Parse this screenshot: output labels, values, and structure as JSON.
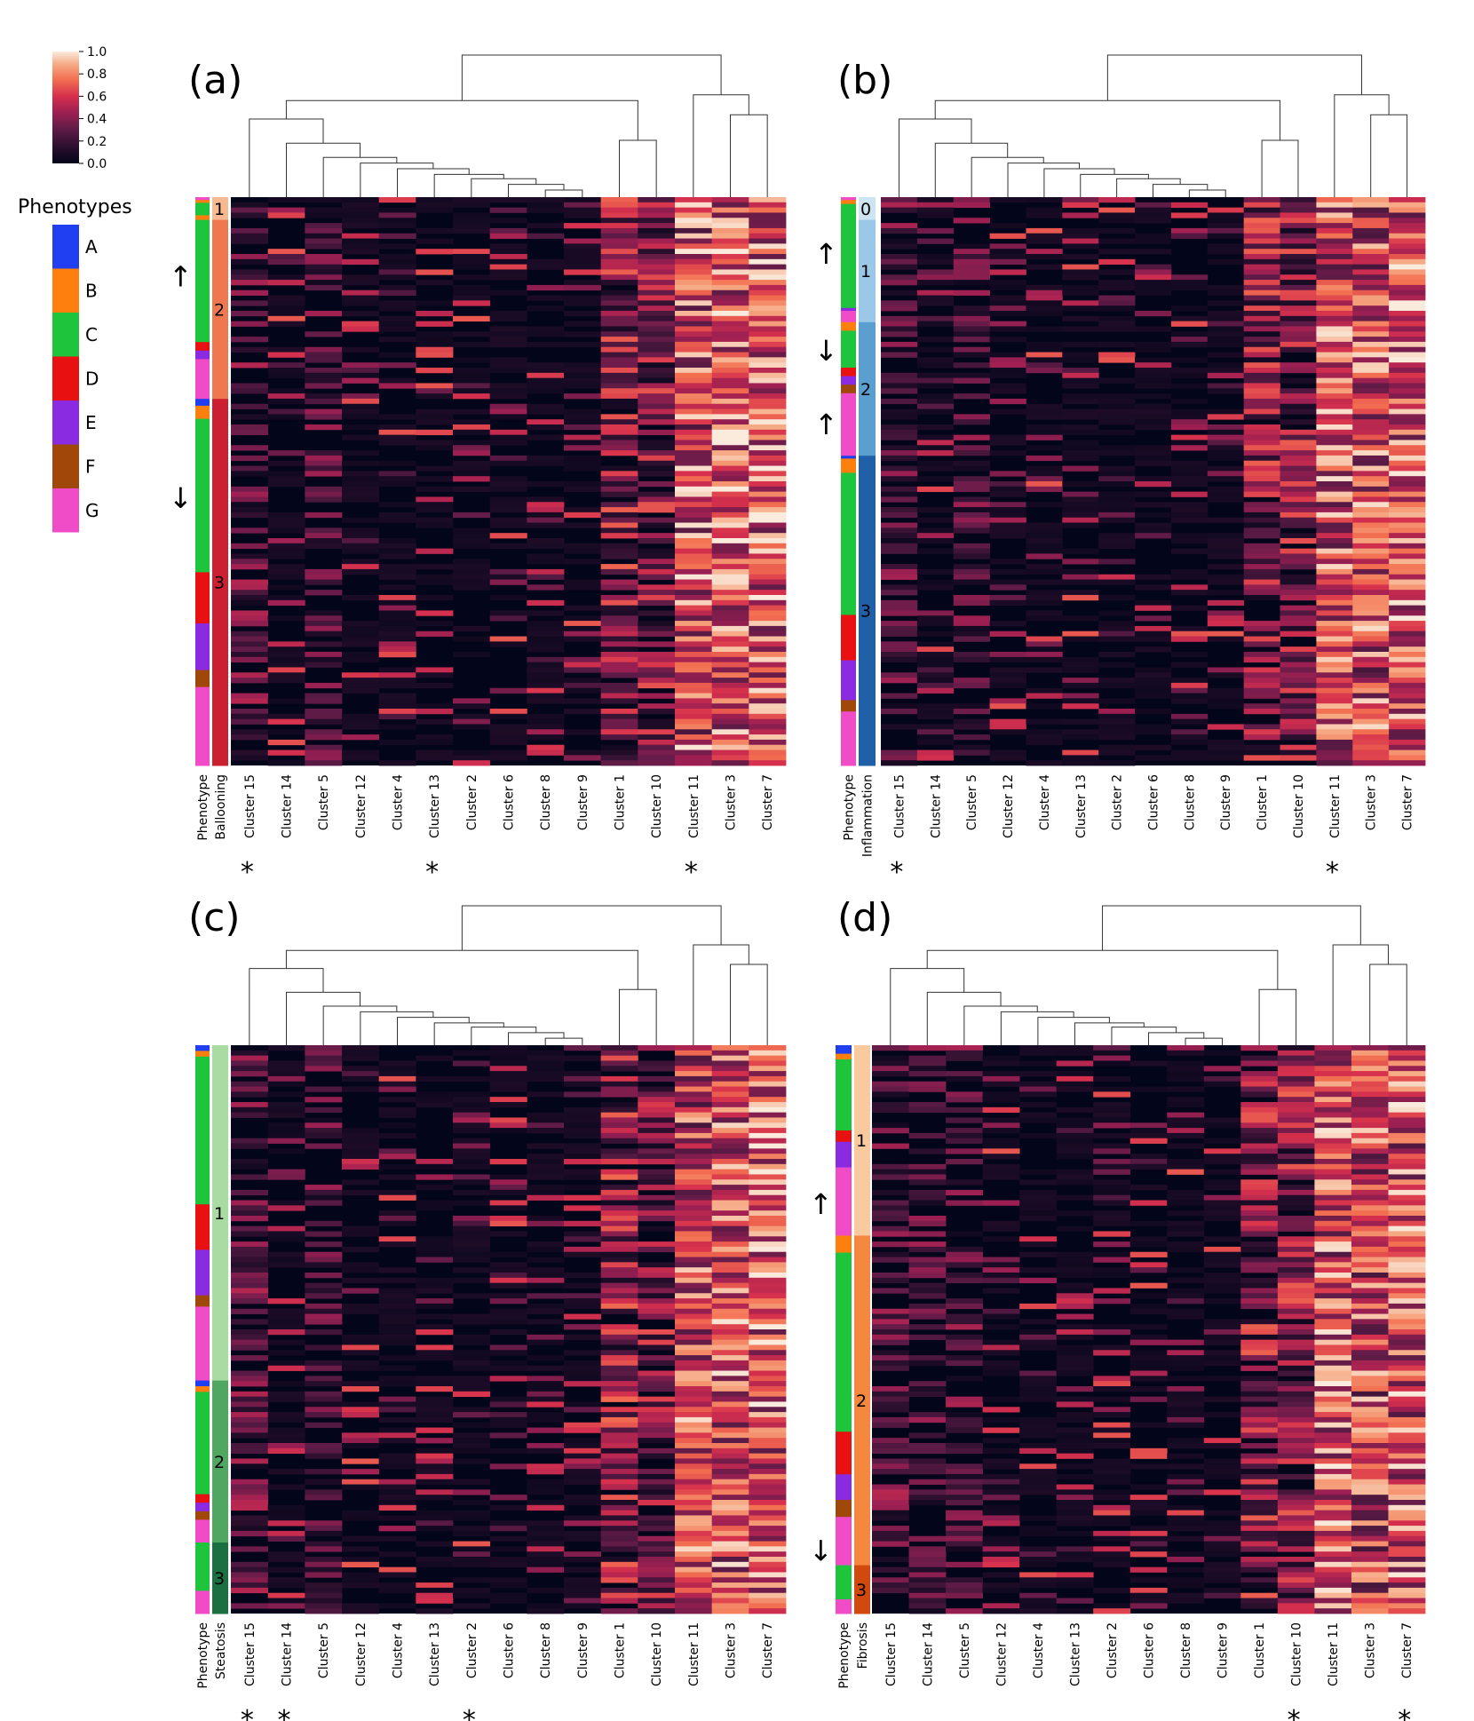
{
  "colorbar": {
    "ticks": [
      1.0,
      0.8,
      0.6,
      0.4,
      0.2,
      0.0
    ],
    "tick_labels": [
      "1.0",
      "0.8",
      "0.6",
      "0.4",
      "0.2",
      "0.0"
    ],
    "colormap": "rocket",
    "range": [
      0.0,
      1.0
    ]
  },
  "phenotype_legend": {
    "title": "Phenotypes",
    "items": [
      {
        "label": "A",
        "color": "#1f3ff0"
      },
      {
        "label": "B",
        "color": "#ff7f0e"
      },
      {
        "label": "C",
        "color": "#1ec43c"
      },
      {
        "label": "D",
        "color": "#e81010"
      },
      {
        "label": "E",
        "color": "#8a2be2"
      },
      {
        "label": "F",
        "color": "#a0480a"
      },
      {
        "label": "G",
        "color": "#f04cc8"
      }
    ]
  },
  "chart_data": [
    {
      "type": "heatmap",
      "panel": "(a)",
      "row_annotation": "Ballooning",
      "columns": [
        "Cluster 15",
        "Cluster 14",
        "Cluster 5",
        "Cluster 12",
        "Cluster 4",
        "Cluster 13",
        "Cluster 2",
        "Cluster 6",
        "Cluster 8",
        "Cluster 9",
        "Cluster 1",
        "Cluster 10",
        "Cluster 11",
        "Cluster 3",
        "Cluster 7"
      ],
      "starred_columns": [
        "Cluster 15",
        "Cluster 13",
        "Cluster 11"
      ],
      "groups": [
        {
          "label": "1",
          "start": 0.0,
          "end": 0.04,
          "color": "#f8b890"
        },
        {
          "label": "2",
          "start": 0.04,
          "end": 0.355,
          "color": "#f07850"
        },
        {
          "label": "3",
          "start": 0.355,
          "end": 1.0,
          "color": "#cc2030"
        }
      ],
      "arrows": [
        {
          "symbol": "↑",
          "at": 0.14
        },
        {
          "symbol": "↓",
          "at": 0.53
        }
      ],
      "phenotype_strip": [
        {
          "p": "G",
          "s": 0.0,
          "e": 0.005
        },
        {
          "p": "B",
          "s": 0.005,
          "e": 0.01
        },
        {
          "p": "C",
          "s": 0.01,
          "e": 0.032
        },
        {
          "p": "B",
          "s": 0.032,
          "e": 0.04
        },
        {
          "p": "C",
          "s": 0.04,
          "e": 0.255
        },
        {
          "p": "D",
          "s": 0.255,
          "e": 0.27
        },
        {
          "p": "E",
          "s": 0.27,
          "e": 0.285
        },
        {
          "p": "G",
          "s": 0.285,
          "e": 0.355
        },
        {
          "p": "A",
          "s": 0.355,
          "e": 0.367
        },
        {
          "p": "B",
          "s": 0.367,
          "e": 0.39
        },
        {
          "p": "C",
          "s": 0.39,
          "e": 0.66
        },
        {
          "p": "D",
          "s": 0.66,
          "e": 0.75
        },
        {
          "p": "E",
          "s": 0.75,
          "e": 0.832
        },
        {
          "p": "F",
          "s": 0.832,
          "e": 0.862
        },
        {
          "p": "G",
          "s": 0.862,
          "e": 1.0
        }
      ],
      "column_profile": [
        0.14,
        0.07,
        0.11,
        0.02,
        0.05,
        0.06,
        0.05,
        0.04,
        0.03,
        0.02,
        0.35,
        0.32,
        0.62,
        0.66,
        0.68
      ]
    },
    {
      "type": "heatmap",
      "panel": "(b)",
      "row_annotation": "Inflammation",
      "columns": [
        "Cluster 15",
        "Cluster 14",
        "Cluster 5",
        "Cluster 12",
        "Cluster 4",
        "Cluster 13",
        "Cluster 2",
        "Cluster 6",
        "Cluster 8",
        "Cluster 9",
        "Cluster 1",
        "Cluster 10",
        "Cluster 11",
        "Cluster 3",
        "Cluster 7"
      ],
      "starred_columns": [
        "Cluster 15",
        "Cluster 11"
      ],
      "groups": [
        {
          "label": "0",
          "start": 0.0,
          "end": 0.04,
          "color": "#cde4f3"
        },
        {
          "label": "1",
          "start": 0.04,
          "end": 0.22,
          "color": "#9ac8e6"
        },
        {
          "label": "2",
          "start": 0.22,
          "end": 0.455,
          "color": "#5a9fd0"
        },
        {
          "label": "3",
          "start": 0.455,
          "end": 1.0,
          "color": "#1f60a8"
        }
      ],
      "arrows": [
        {
          "symbol": "↑",
          "at": 0.1
        },
        {
          "symbol": "↓",
          "at": 0.27
        },
        {
          "symbol": "↑",
          "at": 0.4
        }
      ],
      "phenotype_strip": [
        {
          "p": "G",
          "s": 0.0,
          "e": 0.005
        },
        {
          "p": "B",
          "s": 0.005,
          "e": 0.012
        },
        {
          "p": "C",
          "s": 0.012,
          "e": 0.195
        },
        {
          "p": "E",
          "s": 0.195,
          "e": 0.2
        },
        {
          "p": "G",
          "s": 0.2,
          "e": 0.22
        },
        {
          "p": "B",
          "s": 0.22,
          "e": 0.235
        },
        {
          "p": "C",
          "s": 0.235,
          "e": 0.3
        },
        {
          "p": "D",
          "s": 0.3,
          "e": 0.315
        },
        {
          "p": "E",
          "s": 0.315,
          "e": 0.33
        },
        {
          "p": "F",
          "s": 0.33,
          "e": 0.345
        },
        {
          "p": "G",
          "s": 0.345,
          "e": 0.455
        },
        {
          "p": "A",
          "s": 0.455,
          "e": 0.46
        },
        {
          "p": "B",
          "s": 0.46,
          "e": 0.485
        },
        {
          "p": "C",
          "s": 0.485,
          "e": 0.735
        },
        {
          "p": "D",
          "s": 0.735,
          "e": 0.815
        },
        {
          "p": "E",
          "s": 0.815,
          "e": 0.885
        },
        {
          "p": "F",
          "s": 0.885,
          "e": 0.905
        },
        {
          "p": "G",
          "s": 0.905,
          "e": 1.0
        }
      ],
      "column_profile": [
        0.13,
        0.08,
        0.1,
        0.02,
        0.05,
        0.07,
        0.05,
        0.04,
        0.03,
        0.02,
        0.36,
        0.33,
        0.63,
        0.6,
        0.66
      ]
    },
    {
      "type": "heatmap",
      "panel": "(c)",
      "row_annotation": "Steatosis",
      "columns": [
        "Cluster 15",
        "Cluster 14",
        "Cluster 5",
        "Cluster 12",
        "Cluster 4",
        "Cluster 13",
        "Cluster 2",
        "Cluster 6",
        "Cluster 8",
        "Cluster 9",
        "Cluster 1",
        "Cluster 10",
        "Cluster 11",
        "Cluster 3",
        "Cluster 7"
      ],
      "starred_columns": [
        "Cluster 15",
        "Cluster 14",
        "Cluster 2"
      ],
      "groups": [
        {
          "label": "1",
          "start": 0.0,
          "end": 0.59,
          "color": "#a8dca0"
        },
        {
          "label": "2",
          "start": 0.59,
          "end": 0.875,
          "color": "#50a860"
        },
        {
          "label": "3",
          "start": 0.875,
          "end": 1.0,
          "color": "#1a7040"
        }
      ],
      "arrows": [],
      "phenotype_strip": [
        {
          "p": "A",
          "s": 0.0,
          "e": 0.01
        },
        {
          "p": "B",
          "s": 0.01,
          "e": 0.02
        },
        {
          "p": "C",
          "s": 0.02,
          "e": 0.28
        },
        {
          "p": "D",
          "s": 0.28,
          "e": 0.36
        },
        {
          "p": "E",
          "s": 0.36,
          "e": 0.44
        },
        {
          "p": "F",
          "s": 0.44,
          "e": 0.46
        },
        {
          "p": "G",
          "s": 0.46,
          "e": 0.59
        },
        {
          "p": "A",
          "s": 0.59,
          "e": 0.6
        },
        {
          "p": "B",
          "s": 0.6,
          "e": 0.61
        },
        {
          "p": "C",
          "s": 0.61,
          "e": 0.79
        },
        {
          "p": "D",
          "s": 0.79,
          "e": 0.805
        },
        {
          "p": "E",
          "s": 0.805,
          "e": 0.82
        },
        {
          "p": "F",
          "s": 0.82,
          "e": 0.835
        },
        {
          "p": "G",
          "s": 0.835,
          "e": 0.875
        },
        {
          "p": "C",
          "s": 0.875,
          "e": 0.96
        },
        {
          "p": "G",
          "s": 0.96,
          "e": 1.0
        }
      ],
      "column_profile": [
        0.15,
        0.09,
        0.1,
        0.03,
        0.05,
        0.07,
        0.06,
        0.05,
        0.03,
        0.02,
        0.37,
        0.3,
        0.6,
        0.62,
        0.67
      ]
    },
    {
      "type": "heatmap",
      "panel": "(d)",
      "row_annotation": "Fibrosis",
      "columns": [
        "Cluster 15",
        "Cluster 14",
        "Cluster 5",
        "Cluster 12",
        "Cluster 4",
        "Cluster 13",
        "Cluster 2",
        "Cluster 6",
        "Cluster 8",
        "Cluster 9",
        "Cluster 1",
        "Cluster 10",
        "Cluster 11",
        "Cluster 3",
        "Cluster 7"
      ],
      "starred_columns": [
        "Cluster 10",
        "Cluster 7"
      ],
      "groups": [
        {
          "label": "1",
          "start": 0.0,
          "end": 0.335,
          "color": "#f9c9a0"
        },
        {
          "label": "2",
          "start": 0.335,
          "end": 0.915,
          "color": "#f58840"
        },
        {
          "label": "3",
          "start": 0.915,
          "end": 1.0,
          "color": "#d04a10"
        }
      ],
      "arrows": [
        {
          "symbol": "↑",
          "at": 0.28
        },
        {
          "symbol": "↓",
          "at": 0.89
        }
      ],
      "phenotype_strip": [
        {
          "p": "A",
          "s": 0.0,
          "e": 0.015
        },
        {
          "p": "B",
          "s": 0.015,
          "e": 0.025
        },
        {
          "p": "C",
          "s": 0.025,
          "e": 0.15
        },
        {
          "p": "D",
          "s": 0.15,
          "e": 0.17
        },
        {
          "p": "E",
          "s": 0.17,
          "e": 0.215
        },
        {
          "p": "G",
          "s": 0.215,
          "e": 0.335
        },
        {
          "p": "B",
          "s": 0.335,
          "e": 0.365
        },
        {
          "p": "C",
          "s": 0.365,
          "e": 0.68
        },
        {
          "p": "D",
          "s": 0.68,
          "e": 0.755
        },
        {
          "p": "E",
          "s": 0.755,
          "e": 0.8
        },
        {
          "p": "F",
          "s": 0.8,
          "e": 0.83
        },
        {
          "p": "G",
          "s": 0.83,
          "e": 0.915
        },
        {
          "p": "C",
          "s": 0.915,
          "e": 0.975
        },
        {
          "p": "G",
          "s": 0.975,
          "e": 1.0
        }
      ],
      "column_profile": [
        0.16,
        0.1,
        0.12,
        0.03,
        0.05,
        0.08,
        0.06,
        0.04,
        0.03,
        0.02,
        0.34,
        0.35,
        0.64,
        0.58,
        0.63
      ]
    }
  ]
}
